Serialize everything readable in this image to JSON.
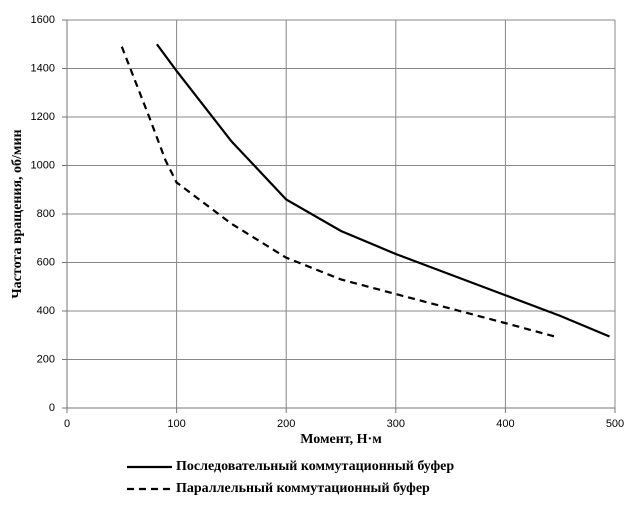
{
  "chart_data": {
    "type": "line",
    "xlabel": "Момент, Н·м",
    "ylabel": "Частота вращения, об/мин",
    "xlim": [
      0,
      500
    ],
    "xticks": [
      0,
      100,
      200,
      300,
      400,
      500
    ],
    "ylim": [
      0,
      1600
    ],
    "yticks": [
      0,
      200,
      400,
      600,
      800,
      1000,
      1200,
      1400,
      1600
    ],
    "grid": true,
    "legend": "bottom",
    "series": [
      {
        "name": "Последовательный коммутационный буфер",
        "color": "#000000",
        "dash": "solid",
        "x": [
          82,
          100,
          150,
          200,
          250,
          300,
          350,
          400,
          450,
          495
        ],
        "values": [
          1500,
          1390,
          1100,
          860,
          730,
          635,
          550,
          465,
          380,
          295
        ]
      },
      {
        "name": "Параллельный коммутационный буфер",
        "color": "#000000",
        "dash": "dashed",
        "x": [
          50,
          75,
          90,
          100,
          150,
          200,
          250,
          300,
          350,
          400,
          445
        ],
        "values": [
          1490,
          1200,
          1020,
          930,
          760,
          620,
          530,
          470,
          410,
          350,
          295
        ]
      }
    ]
  }
}
